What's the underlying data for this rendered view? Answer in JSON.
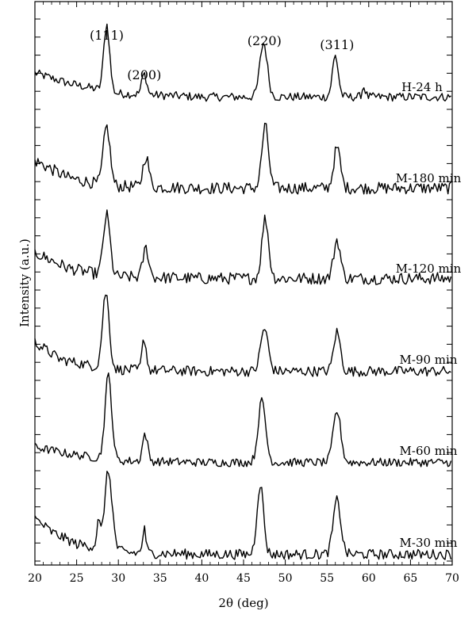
{
  "chart_data": {
    "type": "line",
    "title": "",
    "xlabel": "2θ (deg)",
    "ylabel": "Intensity (a.u.)",
    "xlim": [
      20,
      70
    ],
    "x_ticks": [
      20,
      25,
      30,
      35,
      40,
      45,
      50,
      55,
      60,
      65,
      70
    ],
    "y_tick_labels": "none",
    "grid": false,
    "legend": "none",
    "line_color": "#000000",
    "series_order_top_to_bottom": [
      "H-24 h",
      "M-180 min",
      "M-120 min",
      "M-90 min",
      "M-60 min",
      "M-30 min"
    ],
    "peak_labels": [
      {
        "text": "(111)",
        "x": 28.6
      },
      {
        "text": "(200)",
        "x": 33.1
      },
      {
        "text": "(220)",
        "x": 47.5
      },
      {
        "text": "(311)",
        "x": 56.2
      }
    ],
    "series": [
      {
        "name": "H-24 h",
        "noise": 0.05,
        "baseline": [
          [
            20,
            0.36
          ],
          [
            24,
            0.24
          ],
          [
            27,
            0.18
          ],
          [
            30,
            0.12
          ],
          [
            40,
            0.08
          ],
          [
            60,
            0.08
          ],
          [
            70,
            0.08
          ]
        ],
        "peaks": [
          [
            28.6,
            0.78,
            0.35
          ],
          [
            33.1,
            0.24,
            0.3
          ],
          [
            47.4,
            0.63,
            0.45
          ],
          [
            56.0,
            0.48,
            0.35
          ],
          [
            59.4,
            0.12,
            0.2
          ]
        ]
      },
      {
        "name": "M-180 min",
        "noise": 0.07,
        "baseline": [
          [
            20,
            0.4
          ],
          [
            24,
            0.2
          ],
          [
            27,
            0.14
          ],
          [
            30,
            0.1
          ],
          [
            40,
            0.08
          ],
          [
            60,
            0.08
          ],
          [
            70,
            0.08
          ]
        ],
        "peaks": [
          [
            28.6,
            0.68,
            0.4
          ],
          [
            33.3,
            0.36,
            0.35
          ],
          [
            47.6,
            0.72,
            0.4
          ],
          [
            56.2,
            0.47,
            0.4
          ]
        ]
      },
      {
        "name": "M-120 min",
        "noise": 0.07,
        "baseline": [
          [
            20,
            0.38
          ],
          [
            24,
            0.2
          ],
          [
            27,
            0.14
          ],
          [
            30,
            0.1
          ],
          [
            40,
            0.08
          ],
          [
            60,
            0.08
          ],
          [
            70,
            0.08
          ]
        ],
        "peaks": [
          [
            28.6,
            0.7,
            0.4
          ],
          [
            33.3,
            0.34,
            0.35
          ],
          [
            47.6,
            0.7,
            0.4
          ],
          [
            56.2,
            0.45,
            0.4
          ]
        ]
      },
      {
        "name": "M-90 min",
        "noise": 0.06,
        "baseline": [
          [
            20,
            0.4
          ],
          [
            23,
            0.2
          ],
          [
            27,
            0.12
          ],
          [
            30,
            0.08
          ],
          [
            40,
            0.06
          ],
          [
            60,
            0.06
          ],
          [
            70,
            0.06
          ]
        ],
        "peaks": [
          [
            28.5,
            0.88,
            0.4
          ],
          [
            33.1,
            0.37,
            0.25
          ],
          [
            47.5,
            0.5,
            0.45
          ],
          [
            56.2,
            0.46,
            0.4
          ]
        ]
      },
      {
        "name": "M-60 min",
        "noise": 0.05,
        "baseline": [
          [
            20,
            0.24
          ],
          [
            24,
            0.16
          ],
          [
            27,
            0.12
          ],
          [
            30,
            0.08
          ],
          [
            40,
            0.06
          ],
          [
            60,
            0.06
          ],
          [
            70,
            0.06
          ]
        ],
        "peaks": [
          [
            28.8,
            0.98,
            0.4
          ],
          [
            33.2,
            0.32,
            0.3
          ],
          [
            47.2,
            0.72,
            0.45
          ],
          [
            56.2,
            0.6,
            0.45
          ]
        ]
      },
      {
        "name": "M-30 min",
        "noise": 0.06,
        "baseline": [
          [
            20,
            0.48
          ],
          [
            22,
            0.32
          ],
          [
            25,
            0.18
          ],
          [
            28,
            0.14
          ],
          [
            31,
            0.08
          ],
          [
            40,
            0.06
          ],
          [
            60,
            0.06
          ],
          [
            70,
            0.06
          ]
        ],
        "peaks": [
          [
            28.8,
            0.9,
            0.45
          ],
          [
            27.6,
            0.28,
            0.2
          ],
          [
            33.1,
            0.28,
            0.2
          ],
          [
            47.0,
            0.82,
            0.4
          ],
          [
            56.2,
            0.63,
            0.45
          ]
        ]
      }
    ]
  }
}
